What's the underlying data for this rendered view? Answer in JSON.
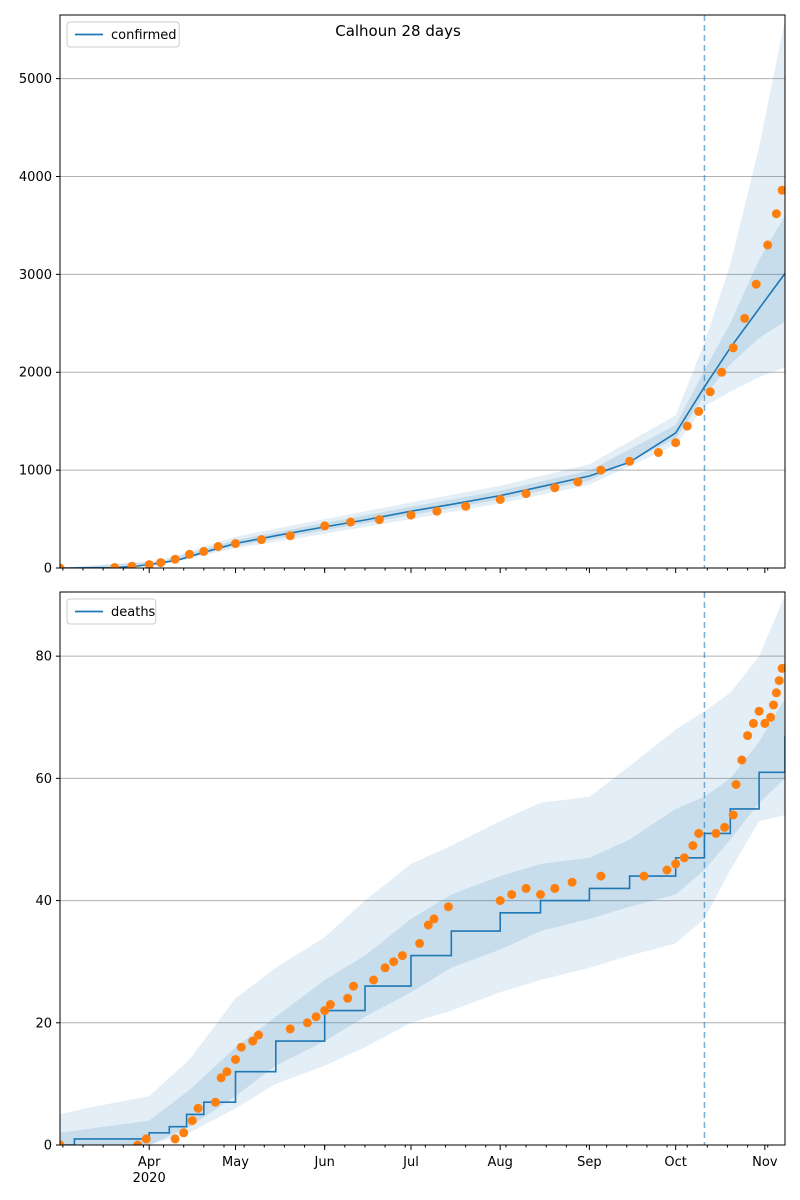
{
  "figure": {
    "title": "Calhoun 28 days"
  },
  "colors": {
    "model": "#1f77b4",
    "observed": "#ff7f0e",
    "band": "#1f77b4",
    "grid": "#b0b0b0"
  },
  "chart_data": [
    {
      "type": "line",
      "title": "Calhoun 28 days",
      "legend": {
        "position": "top-left",
        "entries": [
          "confirmed"
        ]
      },
      "x_axis": {
        "type": "date",
        "range": [
          "2020-03-01",
          "2020-11-08"
        ],
        "tick_labels": [
          {
            "date": "2020-04-01",
            "label": "Apr",
            "sublabel": "2020"
          },
          {
            "date": "2020-05-01",
            "label": "May"
          },
          {
            "date": "2020-06-01",
            "label": "Jun"
          },
          {
            "date": "2020-07-01",
            "label": "Jul"
          },
          {
            "date": "2020-08-01",
            "label": "Aug"
          },
          {
            "date": "2020-09-01",
            "label": "Sep"
          },
          {
            "date": "2020-10-01",
            "label": "Oct"
          },
          {
            "date": "2020-11-01",
            "label": "Nov"
          }
        ]
      },
      "y_axis": {
        "range": [
          0,
          5650
        ],
        "ticks": [
          0,
          1000,
          2000,
          3000,
          4000,
          5000
        ],
        "grid": true
      },
      "forecast_start": "2020-10-11",
      "series": [
        {
          "name": "confirmed",
          "kind": "model",
          "points": [
            [
              "2020-03-01",
              0
            ],
            [
              "2020-03-20",
              5
            ],
            [
              "2020-03-28",
              20
            ],
            [
              "2020-04-05",
              50
            ],
            [
              "2020-04-12",
              90
            ],
            [
              "2020-04-20",
              160
            ],
            [
              "2020-05-01",
              250
            ],
            [
              "2020-05-15",
              330
            ],
            [
              "2020-06-01",
              420
            ],
            [
              "2020-06-15",
              490
            ],
            [
              "2020-07-01",
              580
            ],
            [
              "2020-07-15",
              650
            ],
            [
              "2020-08-01",
              740
            ],
            [
              "2020-08-15",
              830
            ],
            [
              "2020-09-01",
              940
            ],
            [
              "2020-09-15",
              1080
            ],
            [
              "2020-10-01",
              1380
            ],
            [
              "2020-10-11",
              1850
            ],
            [
              "2020-10-20",
              2250
            ],
            [
              "2020-10-30",
              2650
            ],
            [
              "2020-11-08",
              3010
            ]
          ],
          "band_outer": [
            [
              "2020-03-01",
              0,
              0
            ],
            [
              "2020-04-05",
              30,
              80
            ],
            [
              "2020-05-01",
              200,
              320
            ],
            [
              "2020-06-01",
              350,
              500
            ],
            [
              "2020-07-01",
              500,
              670
            ],
            [
              "2020-08-01",
              660,
              840
            ],
            [
              "2020-09-01",
              850,
              1060
            ],
            [
              "2020-10-01",
              1260,
              1560
            ],
            [
              "2020-10-11",
              1650,
              2300
            ],
            [
              "2020-10-20",
              1800,
              3100
            ],
            [
              "2020-10-30",
              1950,
              4300
            ],
            [
              "2020-11-08",
              2050,
              5600
            ]
          ],
          "band_inner": [
            [
              "2020-03-01",
              0,
              0
            ],
            [
              "2020-04-05",
              40,
              65
            ],
            [
              "2020-05-01",
              225,
              285
            ],
            [
              "2020-06-01",
              385,
              460
            ],
            [
              "2020-07-01",
              540,
              625
            ],
            [
              "2020-08-01",
              700,
              790
            ],
            [
              "2020-09-01",
              895,
              995
            ],
            [
              "2020-10-01",
              1320,
              1460
            ],
            [
              "2020-10-11",
              1760,
              2020
            ],
            [
              "2020-10-20",
              2080,
              2500
            ],
            [
              "2020-10-30",
              2350,
              3150
            ],
            [
              "2020-11-08",
              2520,
              3600
            ]
          ]
        },
        {
          "name": "confirmed-observed",
          "kind": "observed",
          "points": [
            [
              "2020-03-01",
              0
            ],
            [
              "2020-03-20",
              5
            ],
            [
              "2020-03-26",
              18
            ],
            [
              "2020-04-01",
              35
            ],
            [
              "2020-04-05",
              55
            ],
            [
              "2020-04-10",
              90
            ],
            [
              "2020-04-15",
              140
            ],
            [
              "2020-04-20",
              170
            ],
            [
              "2020-04-25",
              220
            ],
            [
              "2020-05-01",
              250
            ],
            [
              "2020-05-10",
              290
            ],
            [
              "2020-05-20",
              330
            ],
            [
              "2020-06-01",
              430
            ],
            [
              "2020-06-10",
              470
            ],
            [
              "2020-06-20",
              495
            ],
            [
              "2020-07-01",
              540
            ],
            [
              "2020-07-10",
              580
            ],
            [
              "2020-07-20",
              630
            ],
            [
              "2020-08-01",
              700
            ],
            [
              "2020-08-10",
              760
            ],
            [
              "2020-08-20",
              820
            ],
            [
              "2020-08-28",
              880
            ],
            [
              "2020-09-05",
              1000
            ],
            [
              "2020-09-15",
              1090
            ],
            [
              "2020-09-25",
              1180
            ],
            [
              "2020-10-01",
              1280
            ],
            [
              "2020-10-05",
              1450
            ],
            [
              "2020-10-09",
              1600
            ],
            [
              "2020-10-13",
              1800
            ],
            [
              "2020-10-17",
              2000
            ],
            [
              "2020-10-21",
              2250
            ],
            [
              "2020-10-25",
              2550
            ],
            [
              "2020-10-29",
              2900
            ],
            [
              "2020-11-02",
              3300
            ],
            [
              "2020-11-05",
              3620
            ],
            [
              "2020-11-07",
              3860
            ]
          ]
        }
      ]
    },
    {
      "type": "line",
      "legend": {
        "position": "top-left",
        "entries": [
          "deaths"
        ]
      },
      "x_axis": {
        "type": "date",
        "range": [
          "2020-03-01",
          "2020-11-08"
        ],
        "tick_labels": [
          {
            "date": "2020-04-01",
            "label": "Apr",
            "sublabel": "2020"
          },
          {
            "date": "2020-05-01",
            "label": "May"
          },
          {
            "date": "2020-06-01",
            "label": "Jun"
          },
          {
            "date": "2020-07-01",
            "label": "Jul"
          },
          {
            "date": "2020-08-01",
            "label": "Aug"
          },
          {
            "date": "2020-09-01",
            "label": "Sep"
          },
          {
            "date": "2020-10-01",
            "label": "Oct"
          },
          {
            "date": "2020-11-01",
            "label": "Nov"
          }
        ]
      },
      "y_axis": {
        "range": [
          0,
          90.5
        ],
        "ticks": [
          0,
          20,
          40,
          60,
          80
        ],
        "grid": true
      },
      "forecast_start": "2020-10-11",
      "series": [
        {
          "name": "deaths",
          "kind": "model",
          "step": true,
          "points": [
            [
              "2020-03-01",
              0
            ],
            [
              "2020-03-06",
              1
            ],
            [
              "2020-03-30",
              1
            ],
            [
              "2020-04-01",
              2
            ],
            [
              "2020-04-08",
              3
            ],
            [
              "2020-04-14",
              5
            ],
            [
              "2020-04-20",
              7
            ],
            [
              "2020-05-01",
              12
            ],
            [
              "2020-05-15",
              17
            ],
            [
              "2020-06-01",
              22
            ],
            [
              "2020-06-15",
              26
            ],
            [
              "2020-07-01",
              31
            ],
            [
              "2020-07-15",
              35
            ],
            [
              "2020-08-01",
              38
            ],
            [
              "2020-08-15",
              40
            ],
            [
              "2020-09-01",
              42
            ],
            [
              "2020-09-15",
              44
            ],
            [
              "2020-10-01",
              47
            ],
            [
              "2020-10-11",
              51
            ],
            [
              "2020-10-20",
              55
            ],
            [
              "2020-10-30",
              61
            ],
            [
              "2020-11-08",
              67
            ]
          ],
          "band_outer": [
            [
              "2020-03-01",
              0,
              5
            ],
            [
              "2020-03-10",
              0,
              6
            ],
            [
              "2020-04-01",
              0,
              8
            ],
            [
              "2020-04-15",
              2,
              14
            ],
            [
              "2020-05-01",
              6,
              24
            ],
            [
              "2020-05-15",
              10,
              29
            ],
            [
              "2020-06-01",
              13,
              34
            ],
            [
              "2020-06-15",
              16,
              40
            ],
            [
              "2020-07-01",
              20,
              46
            ],
            [
              "2020-07-15",
              22,
              49
            ],
            [
              "2020-08-01",
              25,
              53
            ],
            [
              "2020-08-15",
              27,
              56
            ],
            [
              "2020-09-01",
              29,
              57
            ],
            [
              "2020-09-15",
              31,
              62
            ],
            [
              "2020-10-01",
              33,
              68
            ],
            [
              "2020-10-11",
              37,
              71
            ],
            [
              "2020-10-20",
              45,
              74
            ],
            [
              "2020-10-30",
              53,
              80
            ],
            [
              "2020-11-08",
              54,
              90
            ]
          ],
          "band_inner": [
            [
              "2020-03-01",
              0,
              2
            ],
            [
              "2020-04-01",
              0,
              4
            ],
            [
              "2020-04-15",
              3,
              9
            ],
            [
              "2020-05-01",
              8,
              16
            ],
            [
              "2020-05-15",
              13,
              21
            ],
            [
              "2020-06-01",
              17,
              27
            ],
            [
              "2020-06-15",
              21,
              31
            ],
            [
              "2020-07-01",
              25,
              37
            ],
            [
              "2020-07-15",
              29,
              41
            ],
            [
              "2020-08-01",
              32,
              44
            ],
            [
              "2020-08-15",
              35,
              46
            ],
            [
              "2020-09-01",
              37,
              47
            ],
            [
              "2020-09-15",
              39,
              50
            ],
            [
              "2020-10-01",
              41,
              55
            ],
            [
              "2020-10-11",
              45,
              57
            ],
            [
              "2020-10-20",
              50,
              60
            ],
            [
              "2020-10-30",
              56,
              66
            ],
            [
              "2020-11-08",
              60,
              73
            ]
          ]
        },
        {
          "name": "deaths-observed",
          "kind": "observed",
          "points": [
            [
              "2020-03-01",
              0
            ],
            [
              "2020-03-28",
              0
            ],
            [
              "2020-03-31",
              1
            ],
            [
              "2020-04-10",
              1
            ],
            [
              "2020-04-13",
              2
            ],
            [
              "2020-04-16",
              4
            ],
            [
              "2020-04-18",
              6
            ],
            [
              "2020-04-24",
              7
            ],
            [
              "2020-04-26",
              11
            ],
            [
              "2020-04-28",
              12
            ],
            [
              "2020-05-01",
              14
            ],
            [
              "2020-05-03",
              16
            ],
            [
              "2020-05-07",
              17
            ],
            [
              "2020-05-09",
              18
            ],
            [
              "2020-05-20",
              19
            ],
            [
              "2020-05-26",
              20
            ],
            [
              "2020-05-29",
              21
            ],
            [
              "2020-06-01",
              22
            ],
            [
              "2020-06-03",
              23
            ],
            [
              "2020-06-09",
              24
            ],
            [
              "2020-06-11",
              26
            ],
            [
              "2020-06-18",
              27
            ],
            [
              "2020-06-22",
              29
            ],
            [
              "2020-06-25",
              30
            ],
            [
              "2020-06-28",
              31
            ],
            [
              "2020-07-04",
              33
            ],
            [
              "2020-07-07",
              36
            ],
            [
              "2020-07-09",
              37
            ],
            [
              "2020-07-14",
              39
            ],
            [
              "2020-08-01",
              40
            ],
            [
              "2020-08-05",
              41
            ],
            [
              "2020-08-10",
              42
            ],
            [
              "2020-08-15",
              41
            ],
            [
              "2020-08-20",
              42
            ],
            [
              "2020-08-26",
              43
            ],
            [
              "2020-09-05",
              44
            ],
            [
              "2020-09-20",
              44
            ],
            [
              "2020-09-28",
              45
            ],
            [
              "2020-10-01",
              46
            ],
            [
              "2020-10-04",
              47
            ],
            [
              "2020-10-07",
              49
            ],
            [
              "2020-10-09",
              51
            ],
            [
              "2020-10-15",
              51
            ],
            [
              "2020-10-18",
              52
            ],
            [
              "2020-10-21",
              54
            ],
            [
              "2020-10-22",
              59
            ],
            [
              "2020-10-24",
              63
            ],
            [
              "2020-10-26",
              67
            ],
            [
              "2020-10-28",
              69
            ],
            [
              "2020-10-30",
              71
            ],
            [
              "2020-11-01",
              69
            ],
            [
              "2020-11-03",
              70
            ],
            [
              "2020-11-04",
              72
            ],
            [
              "2020-11-05",
              74
            ],
            [
              "2020-11-06",
              76
            ],
            [
              "2020-11-07",
              78
            ]
          ]
        }
      ]
    }
  ]
}
